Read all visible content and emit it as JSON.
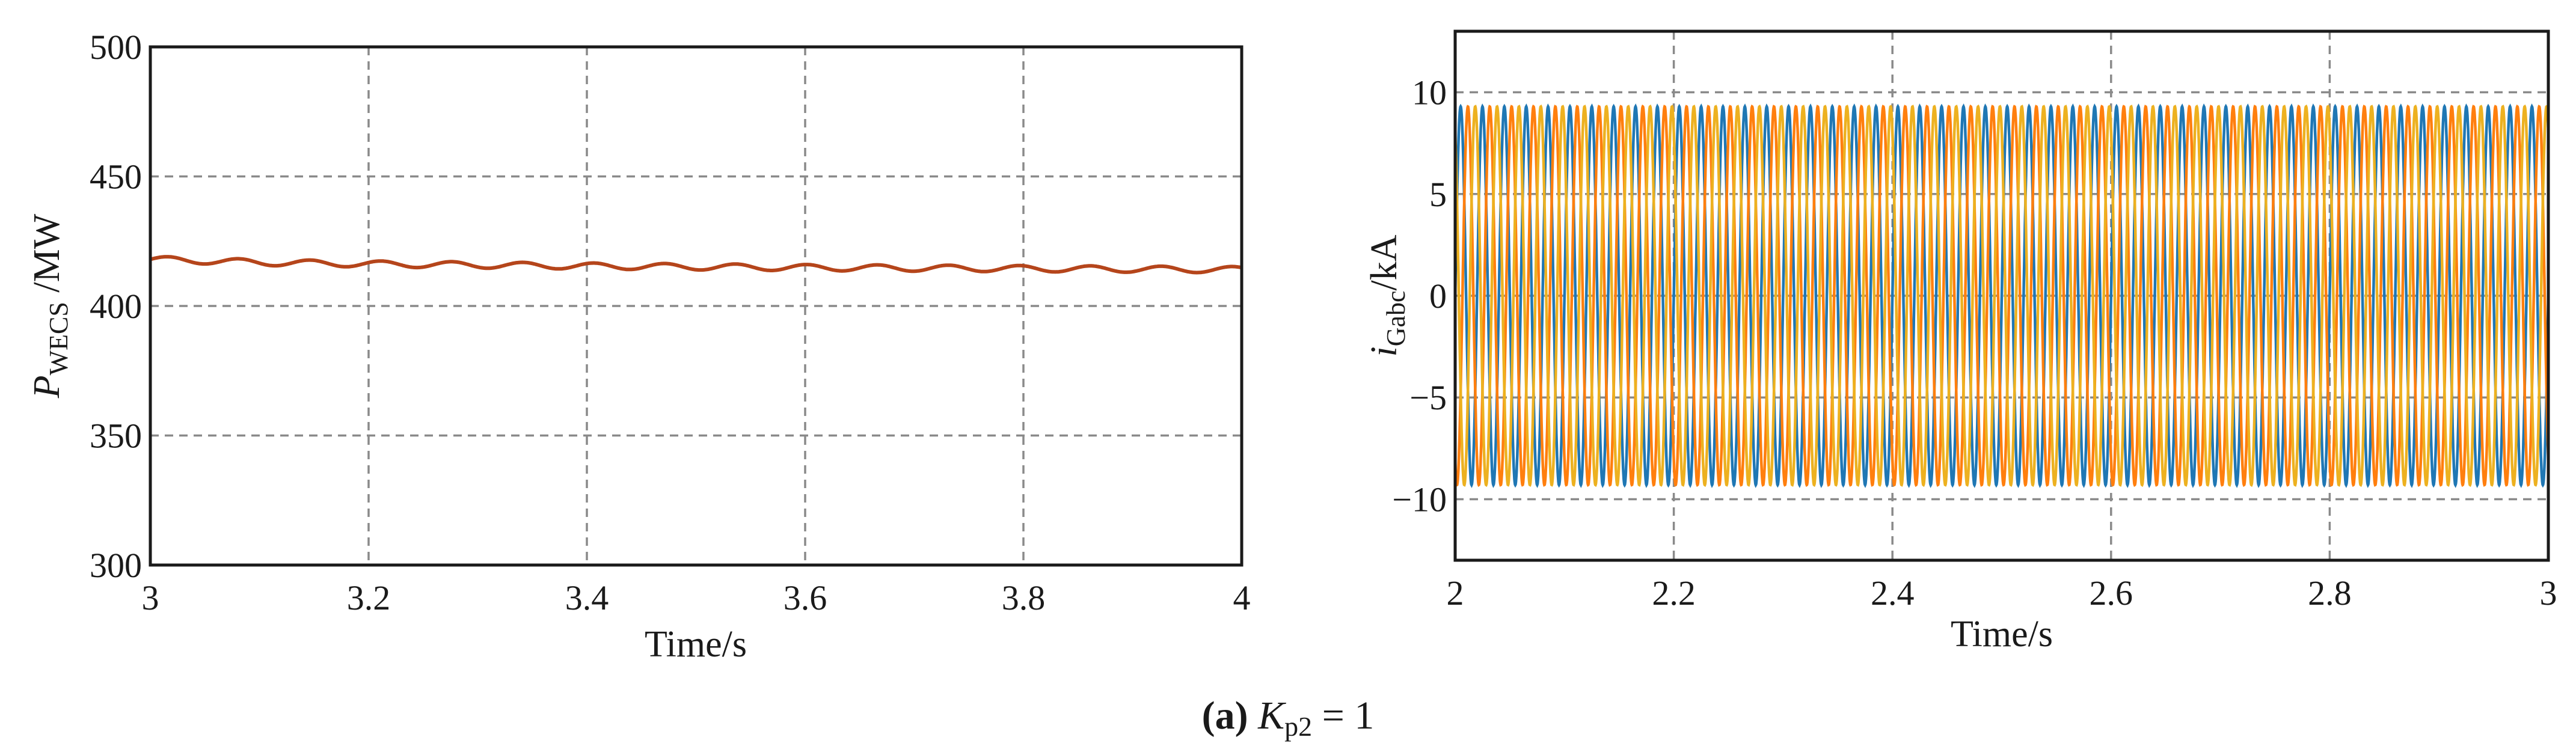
{
  "chart_data": [
    {
      "type": "line",
      "panel": "left",
      "title": "",
      "xlabel": "Time/s",
      "ylabel": {
        "main": "P",
        "subscript": "WECS",
        "suffix": " /MW"
      },
      "xlim": [
        3,
        4
      ],
      "ylim": [
        300,
        500
      ],
      "xticks": [
        "3",
        "3.2",
        "3.4",
        "3.6",
        "3.8",
        "4"
      ],
      "yticks": [
        "300",
        "350",
        "400",
        "450",
        "500"
      ],
      "xtick_values": [
        3,
        3.2,
        3.4,
        3.6,
        3.8,
        4
      ],
      "ytick_values": [
        300,
        350,
        400,
        450,
        500
      ],
      "grid": true,
      "series": [
        {
          "name": "P_WECS",
          "color": "#b5451b",
          "x": [
            3.0,
            3.1,
            3.2,
            3.3,
            3.4,
            3.5,
            3.6,
            3.7,
            3.8,
            3.9,
            4.0
          ],
          "y": [
            418,
            416.8,
            416.2,
            415.8,
            415.4,
            415.1,
            414.8,
            414.6,
            414.4,
            414.2,
            414.0
          ],
          "ripple_amplitude": 1.2,
          "ripple_period": 0.065
        }
      ]
    },
    {
      "type": "line",
      "panel": "right",
      "title": "",
      "xlabel": "Time/s",
      "ylabel": {
        "main": "i",
        "subscript": "Gabc",
        "suffix": "/kA"
      },
      "xlim": [
        2,
        3
      ],
      "ylim": [
        -13,
        13
      ],
      "xticks": [
        "2",
        "2.2",
        "2.4",
        "2.6",
        "2.8",
        "3"
      ],
      "yticks": [
        "−10",
        "−5",
        "0",
        "5",
        "10"
      ],
      "xtick_values": [
        2,
        2.2,
        2.4,
        2.6,
        2.8,
        3
      ],
      "ytick_values": [
        -10,
        -5,
        0,
        5,
        10
      ],
      "grid": true,
      "series": [
        {
          "name": "i_Ga",
          "color": "#1f77b4",
          "amplitude": 9.3,
          "frequency_hz": 50,
          "phase_deg": 0
        },
        {
          "name": "i_Gb",
          "color": "#ff7f0e",
          "amplitude": 9.3,
          "frequency_hz": 50,
          "phase_deg": -120
        },
        {
          "name": "i_Gc",
          "color": "#edb120",
          "amplitude": 9.3,
          "frequency_hz": 50,
          "phase_deg": 120
        }
      ]
    }
  ],
  "caption": {
    "label": "(a)",
    "param_main": "K",
    "param_sub": "p2",
    "param_value": " = 1"
  }
}
